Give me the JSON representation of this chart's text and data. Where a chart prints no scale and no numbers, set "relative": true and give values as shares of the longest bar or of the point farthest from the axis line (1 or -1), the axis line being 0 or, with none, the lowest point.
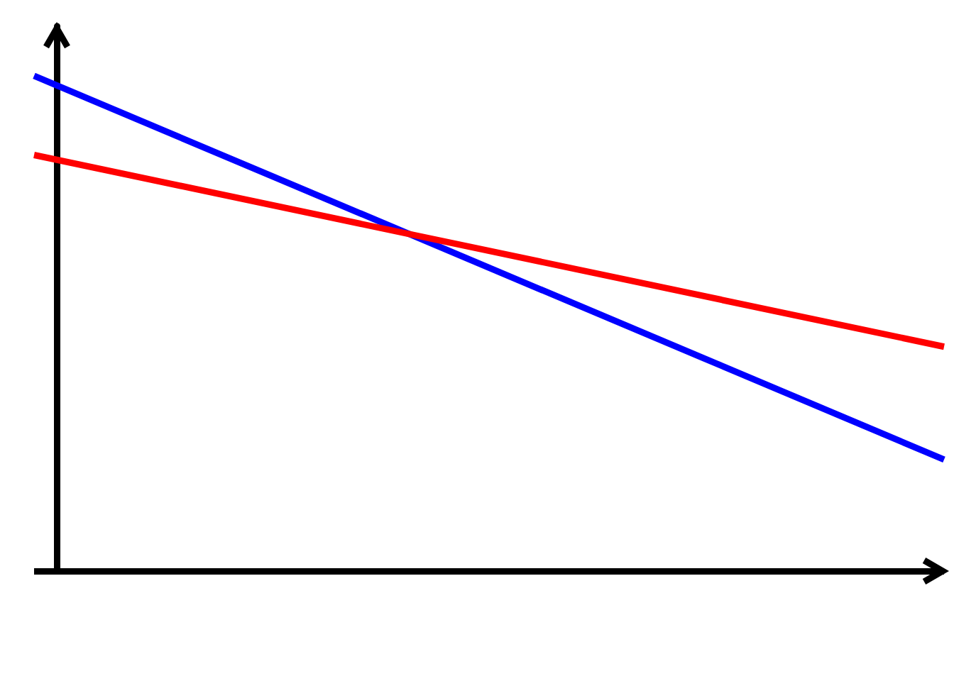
{
  "chart_data": {
    "type": "line",
    "relative": true,
    "categories": [
      null,
      null
    ],
    "marker": "none",
    "grid": false,
    "ref_lines": [
      {
        "axis": "y",
        "value": 0,
        "color": "#000000"
      }
    ],
    "series": [
      {
        "color": "#0000ff",
        "values": [
          1,
          0.225
        ]
      },
      {
        "color": "#ff0000",
        "values": [
          0.84,
          0.453
        ]
      }
    ]
  }
}
